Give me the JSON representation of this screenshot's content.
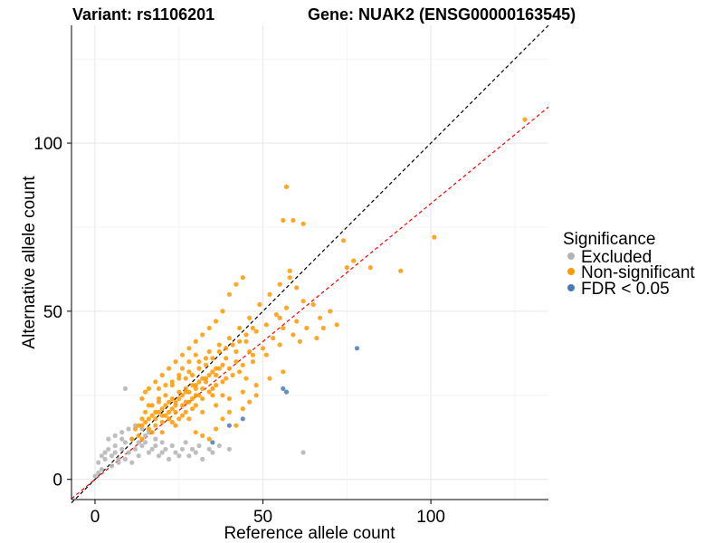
{
  "header": {
    "variant_title": "Variant: rs1106201",
    "gene_title": "Gene: NUAK2 (ENSG00000163545)"
  },
  "axes": {
    "xlabel": "Reference allele count",
    "ylabel": "Alternative allele count"
  },
  "legend": {
    "title": "Significance",
    "items": [
      {
        "label": "Excluded",
        "color": "#b3b3b3"
      },
      {
        "label": "Non-significant",
        "color": "#ff9900"
      },
      {
        "label": "FDR < 0.05",
        "color": "#4a7ab7"
      }
    ]
  },
  "chart_data": {
    "type": "scatter",
    "xlabel": "Reference allele count",
    "ylabel": "Alternative allele count",
    "xlim": [
      -7,
      135
    ],
    "ylim": [
      -6,
      135
    ],
    "x_ticks": [
      0,
      50,
      100
    ],
    "y_ticks": [
      0,
      50,
      100
    ],
    "grid": true,
    "legend_position": "right",
    "reference_lines": [
      {
        "name": "identity",
        "slope": 1.0,
        "intercept": 0,
        "color": "#000000",
        "style": "dashed"
      },
      {
        "name": "fit",
        "slope": 0.82,
        "intercept": 0,
        "color": "#ff0000",
        "style": "dashed"
      }
    ],
    "series": [
      {
        "name": "Excluded",
        "color": "#b3b3b3",
        "points": [
          [
            1,
            5
          ],
          [
            3,
            8
          ],
          [
            4,
            9
          ],
          [
            5,
            7
          ],
          [
            6,
            10
          ],
          [
            7,
            6
          ],
          [
            8,
            9
          ],
          [
            9,
            11
          ],
          [
            10,
            8
          ],
          [
            11,
            12
          ],
          [
            12,
            9
          ],
          [
            13,
            7
          ],
          [
            14,
            10
          ],
          [
            15,
            11
          ],
          [
            16,
            8
          ],
          [
            17,
            9
          ],
          [
            18,
            10
          ],
          [
            19,
            7
          ],
          [
            20,
            8
          ],
          [
            21,
            9
          ],
          [
            22,
            6
          ],
          [
            24,
            8
          ],
          [
            26,
            9
          ],
          [
            28,
            7
          ],
          [
            30,
            8
          ],
          [
            32,
            6
          ],
          [
            35,
            8
          ],
          [
            40,
            9
          ],
          [
            4,
            12
          ],
          [
            6,
            13
          ],
          [
            8,
            14
          ],
          [
            10,
            15
          ],
          [
            12,
            16
          ],
          [
            14,
            15
          ],
          [
            9,
            27
          ],
          [
            2,
            3
          ],
          [
            5,
            4
          ],
          [
            7,
            5
          ],
          [
            9,
            6
          ],
          [
            3,
            6
          ],
          [
            1,
            2
          ],
          [
            11,
            5
          ],
          [
            13,
            11
          ],
          [
            15,
            13
          ],
          [
            16,
            14
          ],
          [
            18,
            12
          ],
          [
            20,
            11
          ],
          [
            23,
            10
          ],
          [
            25,
            7
          ],
          [
            27,
            11
          ],
          [
            29,
            9
          ],
          [
            31,
            10
          ],
          [
            34,
            9
          ],
          [
            37,
            10
          ],
          [
            62,
            8
          ],
          [
            0,
            1
          ],
          [
            2,
            7
          ],
          [
            6,
            8
          ],
          [
            8,
            12
          ]
        ]
      },
      {
        "name": "Non-significant",
        "color": "#ff9900",
        "points": [
          [
            11,
            12
          ],
          [
            12,
            15
          ],
          [
            13,
            16
          ],
          [
            14,
            18
          ],
          [
            15,
            20
          ],
          [
            16,
            22
          ],
          [
            17,
            14
          ],
          [
            18,
            18
          ],
          [
            19,
            24
          ],
          [
            20,
            17
          ],
          [
            21,
            25
          ],
          [
            22,
            20
          ],
          [
            23,
            28
          ],
          [
            24,
            22
          ],
          [
            25,
            30
          ],
          [
            26,
            19
          ],
          [
            27,
            26
          ],
          [
            28,
            32
          ],
          [
            29,
            24
          ],
          [
            30,
            28
          ],
          [
            31,
            35
          ],
          [
            32,
            27
          ],
          [
            33,
            30
          ],
          [
            34,
            38
          ],
          [
            35,
            25
          ],
          [
            36,
            33
          ],
          [
            37,
            40
          ],
          [
            38,
            29
          ],
          [
            39,
            36
          ],
          [
            40,
            42
          ],
          [
            41,
            31
          ],
          [
            42,
            38
          ],
          [
            43,
            45
          ],
          [
            44,
            34
          ],
          [
            45,
            41
          ],
          [
            46,
            48
          ],
          [
            47,
            37
          ],
          [
            48,
            44
          ],
          [
            49,
            52
          ],
          [
            50,
            39
          ],
          [
            51,
            46
          ],
          [
            52,
            55
          ],
          [
            53,
            42
          ],
          [
            54,
            49
          ],
          [
            55,
            58
          ],
          [
            56,
            45
          ],
          [
            57,
            51
          ],
          [
            58,
            60
          ],
          [
            60,
            47
          ],
          [
            62,
            53
          ],
          [
            14,
            24
          ],
          [
            16,
            27
          ],
          [
            18,
            29
          ],
          [
            20,
            31
          ],
          [
            22,
            33
          ],
          [
            24,
            35
          ],
          [
            26,
            37
          ],
          [
            28,
            39
          ],
          [
            30,
            41
          ],
          [
            32,
            43
          ],
          [
            34,
            45
          ],
          [
            36,
            47
          ],
          [
            38,
            50
          ],
          [
            40,
            55
          ],
          [
            42,
            58
          ],
          [
            44,
            60
          ],
          [
            20,
            14
          ],
          [
            24,
            16
          ],
          [
            28,
            18
          ],
          [
            32,
            20
          ],
          [
            36,
            22
          ],
          [
            40,
            24
          ],
          [
            44,
            26
          ],
          [
            48,
            28
          ],
          [
            52,
            30
          ],
          [
            56,
            32
          ],
          [
            15,
            26
          ],
          [
            19,
            27
          ],
          [
            23,
            21
          ],
          [
            27,
            23
          ],
          [
            31,
            25
          ],
          [
            35,
            27
          ],
          [
            39,
            30
          ],
          [
            43,
            32
          ],
          [
            47,
            35
          ],
          [
            51,
            37
          ],
          [
            55,
            40
          ],
          [
            59,
            43
          ],
          [
            63,
            45
          ],
          [
            67,
            48
          ],
          [
            25,
            24
          ],
          [
            26,
            25
          ],
          [
            27,
            27
          ],
          [
            28,
            26
          ],
          [
            29,
            28
          ],
          [
            30,
            27
          ],
          [
            31,
            29
          ],
          [
            32,
            30
          ],
          [
            33,
            29
          ],
          [
            34,
            31
          ],
          [
            35,
            32
          ],
          [
            36,
            31
          ],
          [
            37,
            33
          ],
          [
            38,
            34
          ],
          [
            22,
            23
          ],
          [
            23,
            24
          ],
          [
            24,
            23
          ],
          [
            25,
            26
          ],
          [
            21,
            22
          ],
          [
            20,
            21
          ],
          [
            19,
            20
          ],
          [
            18,
            20
          ],
          [
            17,
            19
          ],
          [
            16,
            18
          ],
          [
            15,
            17
          ],
          [
            14,
            16
          ],
          [
            30,
            22
          ],
          [
            32,
            24
          ],
          [
            34,
            26
          ],
          [
            36,
            28
          ],
          [
            38,
            25
          ],
          [
            26,
            33
          ],
          [
            28,
            35
          ],
          [
            30,
            37
          ],
          [
            33,
            34
          ],
          [
            35,
            36
          ],
          [
            40,
            33
          ],
          [
            42,
            35
          ],
          [
            45,
            30
          ],
          [
            46,
            38
          ],
          [
            57,
            87
          ],
          [
            56,
            77
          ],
          [
            59,
            77
          ],
          [
            62,
            76
          ],
          [
            74,
            71
          ],
          [
            75,
            63
          ],
          [
            77,
            65
          ],
          [
            82,
            63
          ],
          [
            91,
            62
          ],
          [
            101,
            72
          ],
          [
            128,
            107
          ],
          [
            58,
            62
          ],
          [
            60,
            57
          ],
          [
            65,
            52
          ],
          [
            70,
            50
          ],
          [
            72,
            46
          ],
          [
            68,
            45
          ],
          [
            61,
            41
          ],
          [
            66,
            42
          ],
          [
            55,
            48
          ],
          [
            13,
            13
          ],
          [
            14,
            12
          ],
          [
            16,
            15
          ],
          [
            18,
            16
          ],
          [
            20,
            19
          ],
          [
            22,
            18
          ],
          [
            24,
            20
          ],
          [
            26,
            22
          ],
          [
            28,
            23
          ],
          [
            30,
            25
          ],
          [
            44,
            21
          ],
          [
            46,
            23
          ],
          [
            48,
            25
          ],
          [
            38,
            18
          ],
          [
            40,
            20
          ],
          [
            42,
            16
          ],
          [
            36,
            15
          ],
          [
            34,
            12
          ],
          [
            32,
            13
          ],
          [
            30,
            14
          ],
          [
            27,
            30
          ],
          [
            29,
            31
          ],
          [
            31,
            33
          ],
          [
            33,
            36
          ],
          [
            37,
            38
          ],
          [
            39,
            39
          ],
          [
            41,
            40
          ],
          [
            43,
            41
          ],
          [
            45,
            43
          ],
          [
            47,
            45
          ],
          [
            21,
            28
          ],
          [
            23,
            29
          ],
          [
            25,
            31
          ],
          [
            17,
            22
          ],
          [
            19,
            23
          ],
          [
            21,
            19
          ],
          [
            23,
            17
          ],
          [
            25,
            18
          ],
          [
            27,
            20
          ],
          [
            29,
            21
          ]
        ]
      },
      {
        "name": "FDR < 0.05",
        "color": "#4a7ab7",
        "points": [
          [
            78,
            39
          ],
          [
            56,
            27
          ],
          [
            57,
            26
          ],
          [
            44,
            18
          ],
          [
            40,
            16
          ],
          [
            35,
            11
          ]
        ]
      }
    ]
  }
}
